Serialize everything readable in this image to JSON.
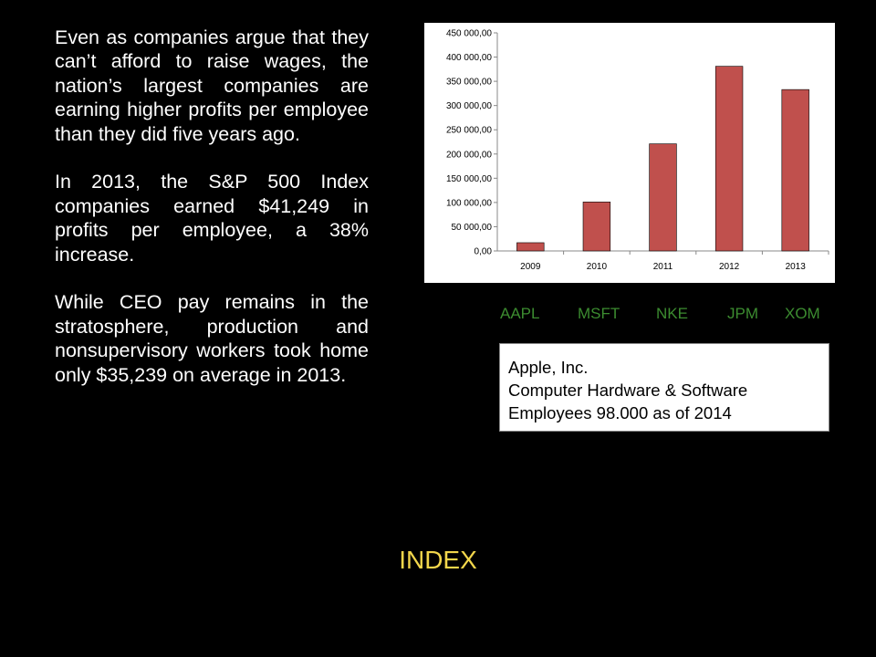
{
  "paragraphs": [
    "Even as companies argue that they can’t afford to raise wages, the nation’s largest companies are earning higher profits per employee than they did five years ago.",
    "In 2013, the S&P 500 Index companies earned $41,249 in profits per employee, a 38% increase.",
    "While CEO pay remains in the stratosphere, production and nonsupervisory workers took home only $35,239 on average in 2013."
  ],
  "chart_data": {
    "type": "bar",
    "categories": [
      "2009",
      "2010",
      "2011",
      "2012",
      "2013"
    ],
    "values": [
      17000,
      101000,
      221000,
      381000,
      333000
    ],
    "y_ticks": [
      "0,00",
      "50 000,00",
      "100 000,00",
      "150 000,00",
      "200 000,00",
      "250 000,00",
      "300 000,00",
      "350 000,00",
      "400 000,00",
      "450 000,00"
    ],
    "ylim": [
      0,
      450000
    ],
    "bar_color": "#c0504d",
    "grid": false,
    "legend": "none"
  },
  "tickers": [
    "AAPL",
    "MSFT",
    "NKE",
    "JPM",
    "XOM"
  ],
  "ticker_color": "#3c8c30",
  "info_box": {
    "line1": "Apple, Inc.",
    "line2": "Computer Hardware & Software",
    "line3": "Employees 98.000 as of 2014"
  },
  "index_link": "INDEX",
  "index_color": "#f2d64b"
}
